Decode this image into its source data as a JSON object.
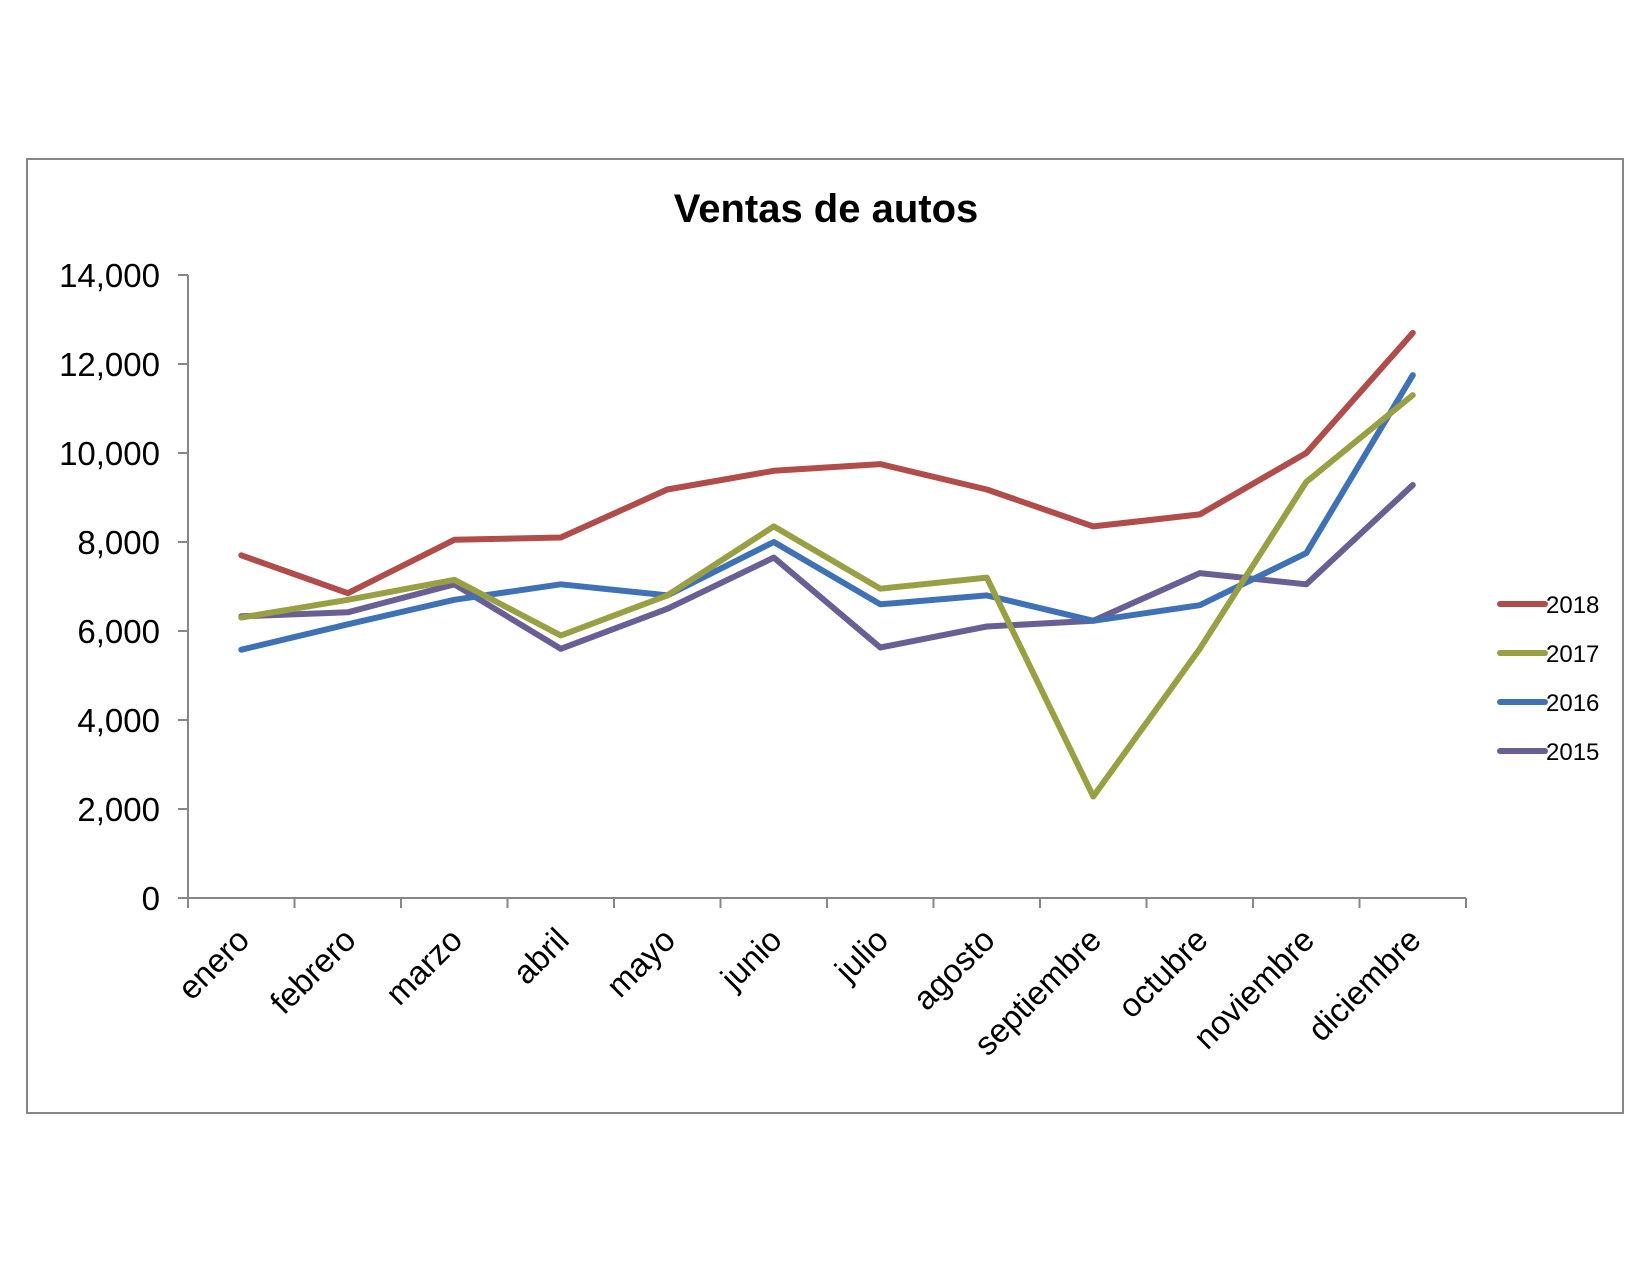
{
  "chart_data": {
    "type": "line",
    "title": "Ventas de autos",
    "xlabel": "",
    "ylabel": "",
    "categories": [
      "enero",
      "febrero",
      "marzo",
      "abril",
      "mayo",
      "junio",
      "julio",
      "agosto",
      "septiembre",
      "octubre",
      "noviembre",
      "diciembre"
    ],
    "ylim": [
      0,
      14000
    ],
    "yticks": [
      0,
      2000,
      4000,
      6000,
      8000,
      10000,
      12000,
      14000
    ],
    "ytick_labels": [
      "0",
      "2,000",
      "4,000",
      "6,000",
      "8,000",
      "10,000",
      "12,000",
      "14,000"
    ],
    "grid": false,
    "legend_position": "right",
    "series": [
      {
        "name": "2018",
        "color": "#b04c4a",
        "values": [
          7700,
          6850,
          8050,
          8100,
          9180,
          9600,
          9750,
          9180,
          8350,
          8620,
          10000,
          12700
        ]
      },
      {
        "name": "2017",
        "color": "#99a043",
        "values": [
          6300,
          6700,
          7150,
          5900,
          6800,
          8350,
          6950,
          7200,
          2280,
          5600,
          9350,
          11300
        ]
      },
      {
        "name": "2016",
        "color": "#3f71b7",
        "values": [
          5580,
          6150,
          6700,
          7050,
          6800,
          8000,
          6600,
          6800,
          6230,
          6580,
          7750,
          11750
        ]
      },
      {
        "name": "2015",
        "color": "#6a5f94",
        "values": [
          6330,
          6420,
          7050,
          5600,
          6500,
          7650,
          5630,
          6100,
          6230,
          7300,
          7050,
          9280
        ]
      }
    ]
  }
}
